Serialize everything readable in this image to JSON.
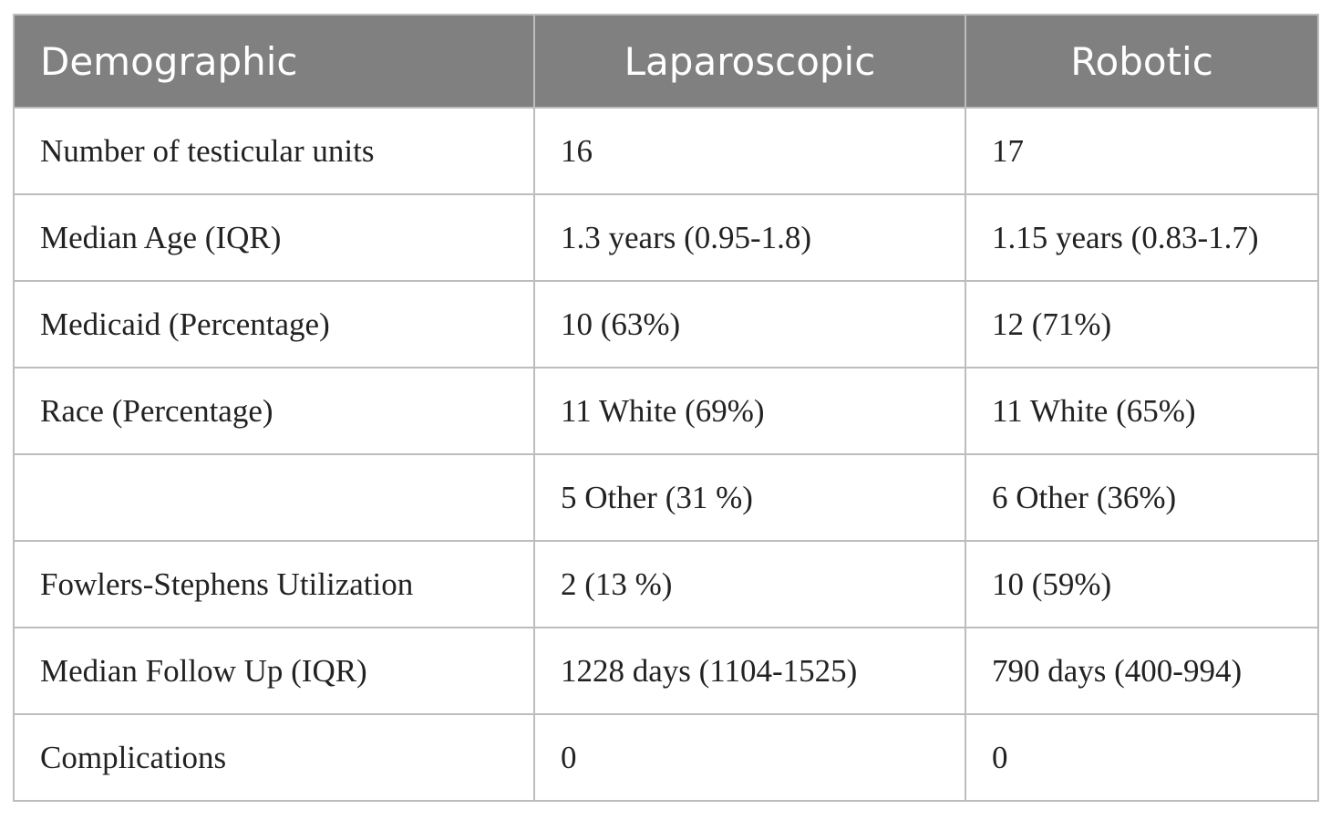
{
  "table": {
    "header": [
      "Demographic",
      "Laparoscopic",
      "Robotic"
    ],
    "rows": [
      [
        "Number of testicular units",
        "16",
        "17"
      ],
      [
        "Median Age (IQR)",
        "1.3 years (0.95-1.8)",
        "1.15 years (0.83-1.7)"
      ],
      [
        "Medicaid (Percentage)",
        "10 (63%)",
        "12 (71%)"
      ],
      [
        "Race (Percentage)",
        "11 White (69%)",
        "11 White (65%)"
      ],
      [
        null,
        "5 Other (31 %)",
        "6 Other (36%)"
      ],
      [
        "Fowlers-Stephens Utilization",
        "2 (13 %)",
        "10 (59%)"
      ],
      [
        "Median Follow Up (IQR)",
        "1228 days (1104-1525)",
        "790 days (400-994)"
      ],
      [
        "Complications",
        "0",
        "0"
      ]
    ]
  }
}
